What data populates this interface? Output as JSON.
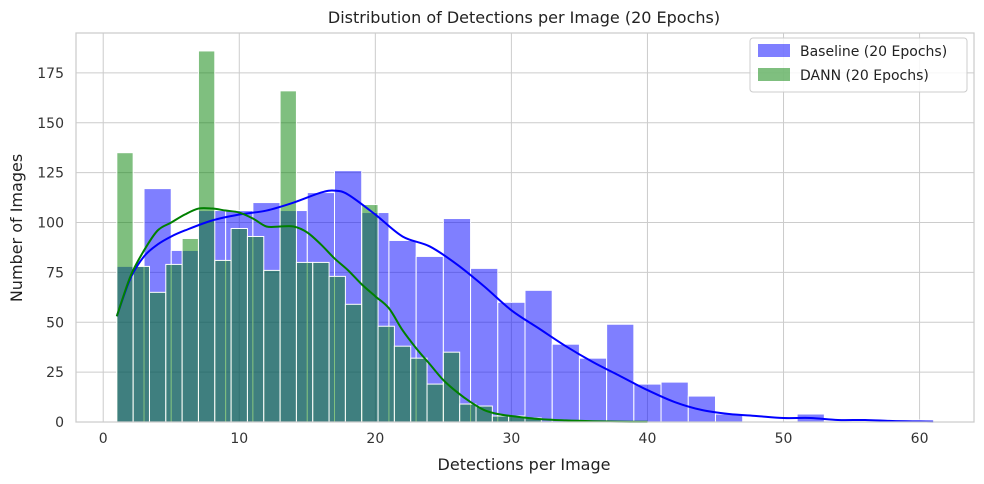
{
  "chart_data": {
    "type": "histogram",
    "title": "Distribution of Detections per Image (20 Epochs)",
    "xlabel": "Detections per Image",
    "ylabel": "Number of Images",
    "xlim": [
      -2,
      64
    ],
    "ylim": [
      0,
      195
    ],
    "xticks": [
      0,
      10,
      20,
      30,
      40,
      50,
      60
    ],
    "yticks": [
      0,
      25,
      50,
      75,
      100,
      125,
      150,
      175
    ],
    "grid": true,
    "legend_position": "top-right",
    "series": [
      {
        "name": "Baseline (20 Epochs)",
        "color": "#0000ff",
        "bar_opacity": 0.5,
        "bin_start": 1,
        "bin_width": 2,
        "values": [
          78,
          117,
          86,
          106,
          106,
          110,
          106,
          115,
          126,
          105,
          91,
          83,
          102,
          77,
          60,
          66,
          39,
          32,
          49,
          19,
          20,
          13,
          4,
          0,
          0,
          4,
          0,
          0,
          0,
          1
        ],
        "kde_x": [
          1,
          2,
          3,
          4,
          5,
          6,
          8,
          10,
          12,
          14,
          16,
          17,
          18,
          20,
          22,
          24,
          26,
          28,
          30,
          32,
          34,
          36,
          38,
          40,
          42,
          44,
          46,
          48,
          50,
          52,
          54,
          56,
          58,
          60,
          61
        ],
        "kde_y": [
          53,
          72,
          83,
          89,
          93,
          96,
          101,
          104,
          106,
          110,
          115,
          116,
          114,
          104,
          93,
          88,
          79,
          68,
          56,
          47,
          38,
          30,
          23,
          16,
          10,
          6,
          4,
          3,
          2,
          2,
          1,
          1,
          0.5,
          0.3,
          0.2
        ]
      },
      {
        "name": "DANN (20 Epochs)",
        "color": "#008000",
        "bar_opacity": 0.5,
        "bin_start": 1,
        "bin_width": 1.2,
        "values": [
          135,
          78,
          65,
          79,
          92,
          186,
          81,
          97,
          93,
          76,
          166,
          80,
          80,
          73,
          59,
          109,
          48,
          38,
          32,
          19,
          35,
          9,
          8,
          3,
          3,
          2,
          0,
          0,
          0,
          0,
          0,
          0,
          0
        ],
        "kde_x": [
          1,
          2,
          3,
          4,
          5,
          6,
          7,
          8,
          9,
          10,
          11,
          12,
          13,
          14,
          15,
          16,
          17,
          18,
          19,
          20,
          21,
          22,
          23,
          24,
          25,
          26,
          27,
          28,
          29,
          30,
          32,
          34,
          36,
          38,
          40
        ],
        "kde_y": [
          53,
          73,
          86,
          96,
          100,
          104,
          107,
          107,
          106,
          105,
          102,
          98,
          98,
          98,
          95,
          89,
          82,
          76,
          69,
          63,
          57,
          46,
          37,
          29,
          21,
          15,
          10,
          6,
          4,
          3,
          1.5,
          0.8,
          0.4,
          0.2,
          0.1
        ]
      }
    ]
  }
}
